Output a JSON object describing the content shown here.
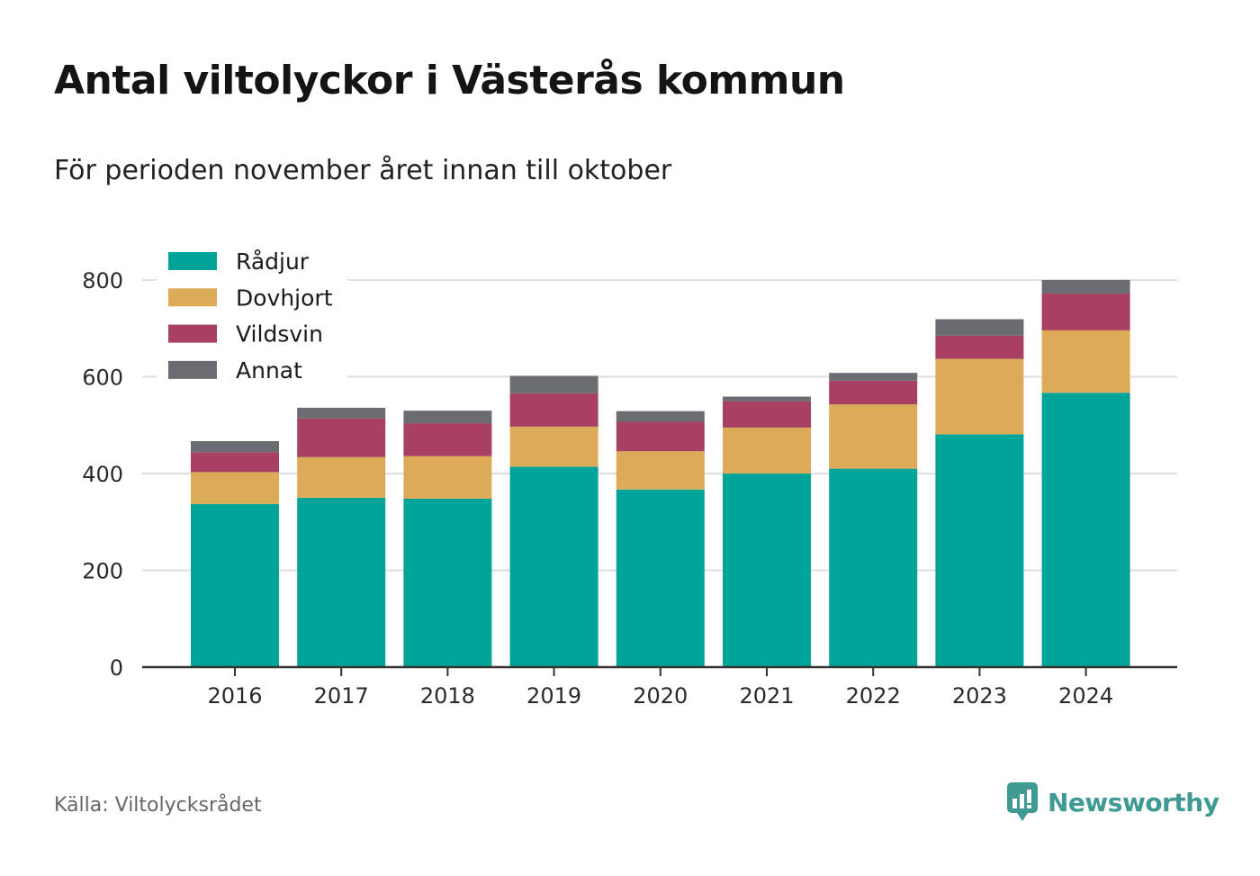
{
  "title": "Antal viltolyckor i Västerås kommun",
  "subtitle": "För perioden november året innan till oktober",
  "source": "Källa: Viltolycksrådet",
  "brand": {
    "name": "Newsworthy",
    "icon": "newsworthy-logo-icon",
    "color": "#3f9a93"
  },
  "chart_data": {
    "type": "bar",
    "stacked": true,
    "categories": [
      "2016",
      "2017",
      "2018",
      "2019",
      "2020",
      "2021",
      "2022",
      "2023",
      "2024"
    ],
    "series": [
      {
        "name": "Rådjur",
        "color": "#00a499",
        "values": [
          337,
          350,
          348,
          414,
          367,
          400,
          410,
          481,
          567
        ]
      },
      {
        "name": "Dovhjort",
        "color": "#dbab57",
        "values": [
          66,
          84,
          88,
          83,
          79,
          95,
          133,
          156,
          129
        ]
      },
      {
        "name": "Vildsvin",
        "color": "#a84063",
        "values": [
          41,
          80,
          68,
          69,
          61,
          54,
          49,
          48,
          76
        ]
      },
      {
        "name": "Annat",
        "color": "#6b6b72",
        "values": [
          23,
          22,
          26,
          36,
          22,
          10,
          16,
          34,
          28
        ]
      }
    ],
    "yticks": [
      0,
      200,
      400,
      600,
      800
    ],
    "ylim": [
      0,
      800
    ],
    "grid": true,
    "legend_position": "top-left"
  }
}
